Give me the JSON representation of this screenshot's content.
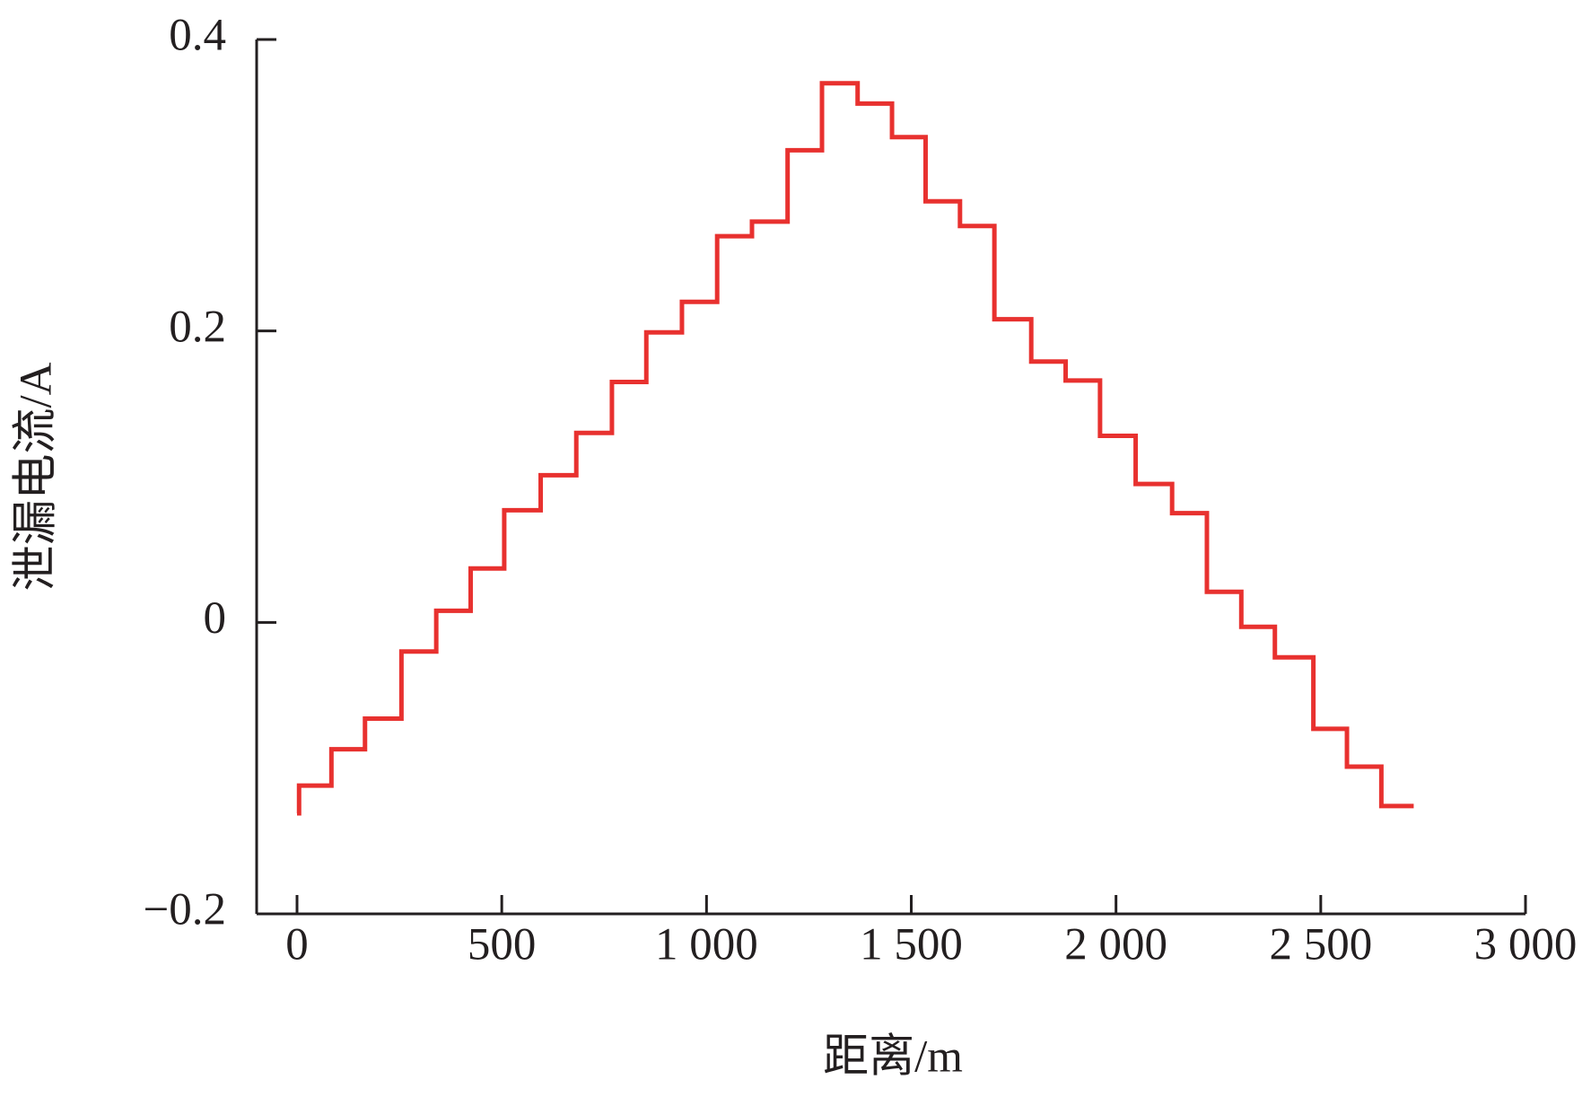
{
  "chart_data": {
    "type": "line",
    "drawstyle": "steps-post",
    "xlabel": "距离/m",
    "ylabel": "泄漏电流/A",
    "x": [
      0,
      5,
      84,
      166,
      255,
      340,
      424,
      506,
      595,
      682,
      769,
      853,
      940,
      1026,
      1111,
      1198,
      1282,
      1369,
      1453,
      1535,
      1619,
      1703,
      1793,
      1877,
      1961,
      2048,
      2137,
      2222,
      2306,
      2388,
      2482,
      2564,
      2648,
      2727
    ],
    "values": [
      -0.131,
      -0.112,
      -0.087,
      -0.066,
      -0.02,
      0.008,
      0.037,
      0.077,
      0.101,
      0.13,
      0.165,
      0.199,
      0.22,
      0.265,
      0.275,
      0.324,
      0.37,
      0.356,
      0.333,
      0.289,
      0.272,
      0.208,
      0.179,
      0.166,
      0.128,
      0.095,
      0.075,
      0.021,
      -0.003,
      -0.024,
      -0.073,
      -0.099,
      -0.126,
      -0.126
    ],
    "color": "#e8312f",
    "xlim": [
      0,
      3000
    ],
    "xticks": [
      0,
      500,
      {
        "value": 1000,
        "label": "1 000"
      },
      {
        "value": 1500,
        "label": "1 500"
      },
      {
        "value": 2000,
        "label": "2 000"
      },
      {
        "value": 2500,
        "label": "2 500"
      },
      {
        "value": 3000,
        "label": "3 000"
      }
    ],
    "ylim": [
      -0.2,
      0.4
    ],
    "yticks": [
      {
        "value": -0.2,
        "label": "−0.2"
      },
      0,
      0.2,
      0.4
    ]
  }
}
